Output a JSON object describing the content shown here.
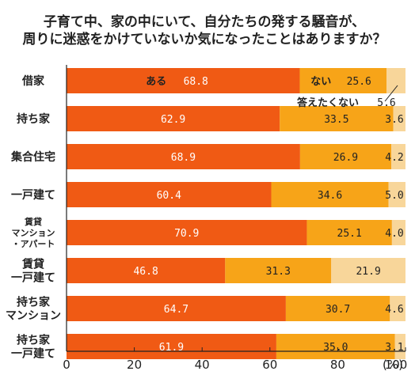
{
  "chart_data": {
    "type": "bar",
    "orientation": "horizontal",
    "stacked": true,
    "title": [
      "子育て中、家の中にいて、自分たちの発する騒音が、",
      "周りに迷惑をかけていないか気になったことはありますか？"
    ],
    "categories": [
      [
        "借家"
      ],
      [
        "持ち家"
      ],
      [
        "集合住宅"
      ],
      [
        "一戸建て"
      ],
      [
        "賃貸",
        "マンション",
        "・アパート"
      ],
      [
        "賃貸",
        "一戸建て"
      ],
      [
        "持ち家",
        "マンション"
      ],
      [
        "持ち家",
        "一戸建て"
      ]
    ],
    "series": [
      {
        "name": "ある",
        "color": "#f05a14",
        "text_color": "#ffffff",
        "values": [
          68.8,
          62.9,
          68.9,
          60.4,
          70.9,
          46.8,
          64.7,
          61.9
        ],
        "labels": [
          "68.8",
          "62.9",
          "68.9",
          "60.4",
          "70.9",
          "46.8",
          "64.7",
          "61.9"
        ]
      },
      {
        "name": "ない",
        "color": "#f7a418",
        "text_color": "#222222",
        "values": [
          25.6,
          33.5,
          26.9,
          34.6,
          25.1,
          31.3,
          30.7,
          35.0
        ],
        "labels": [
          "25.6",
          "33.5",
          "26.9",
          "34.6",
          "25.1",
          "31.3",
          "30.7",
          "35.0"
        ]
      },
      {
        "name": "答えたくない",
        "color": "#f8d69a",
        "text_color": "#222222",
        "values": [
          5.6,
          3.6,
          4.2,
          5.0,
          4.0,
          21.9,
          4.6,
          3.1
        ],
        "labels": [
          "5.6",
          "3.6",
          "4.2",
          "5.0",
          "4.0",
          "21.9",
          "4.6",
          "3.1"
        ]
      }
    ],
    "xticks": [
      "0",
      "20",
      "40",
      "60",
      "80",
      "100"
    ],
    "xunit": "(%)",
    "xlim": [
      0,
      100
    ],
    "grid": false,
    "legend": "inline labels on first bar"
  }
}
